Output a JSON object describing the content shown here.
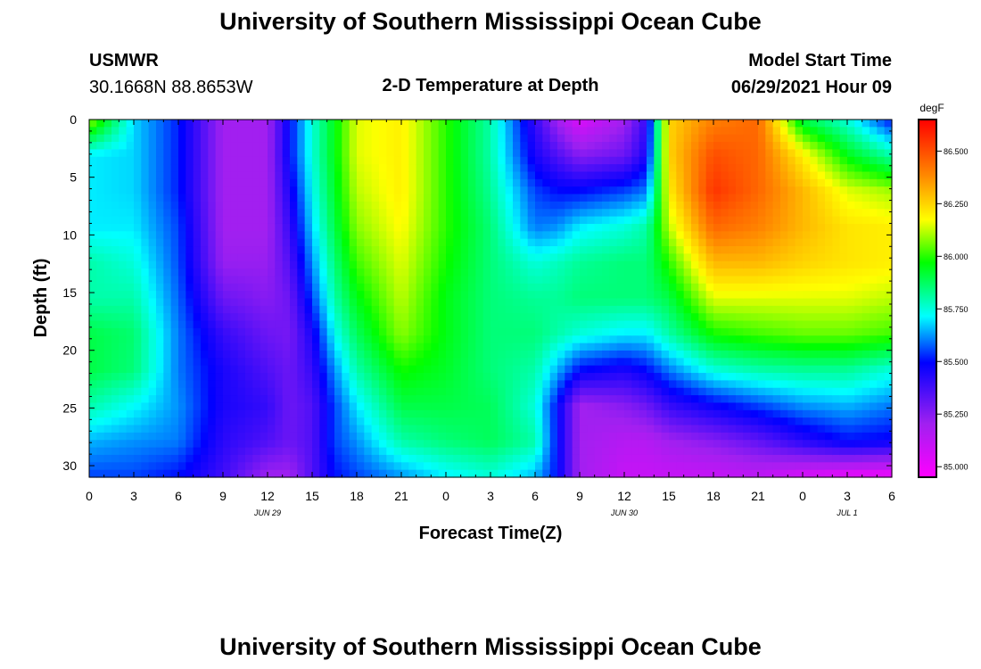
{
  "header": {
    "title": "University of Southern Mississippi Ocean Cube",
    "station": "USMWR",
    "coords": "30.1668N  88.8653W",
    "plot_title": "2-D Temperature at Depth",
    "model_label": "Model Start Time",
    "model_time": "06/29/2021 Hour 09"
  },
  "footer": {
    "title": "University of Southern Mississippi Ocean Cube"
  },
  "chart_data": {
    "type": "heatmap",
    "title": "2-D Temperature at Depth",
    "xlabel": "Forecast Time(Z)",
    "ylabel": "Depth (ft)",
    "x_range_hours": [
      0,
      54
    ],
    "y_range_ft": [
      0,
      31
    ],
    "y_inverted": true,
    "x_tick_labels": [
      "0",
      "3",
      "6",
      "9",
      "12",
      "15",
      "18",
      "21",
      "0",
      "3",
      "6",
      "9",
      "12",
      "15",
      "18",
      "21",
      "0",
      "3",
      "6"
    ],
    "y_ticks": [
      0,
      5,
      10,
      15,
      20,
      25,
      30
    ],
    "date_labels": [
      {
        "text": "JUN 29",
        "hour": 12
      },
      {
        "text": "JUN 30",
        "hour": 36
      },
      {
        "text": "JUL 1",
        "hour": 51
      }
    ],
    "colorbar": {
      "unit": "degF",
      "min": 84.95,
      "max": 86.65,
      "ticks": [
        "85.000",
        "85.250",
        "85.500",
        "85.750",
        "86.000",
        "86.250",
        "86.500"
      ]
    },
    "anchors": [
      {
        "t": 0,
        "col": [
          86.1,
          85.7,
          85.7,
          85.7,
          85.8,
          85.8,
          85.9,
          85.9,
          85.8,
          85.65,
          85.55
        ]
      },
      {
        "t": 3,
        "col": [
          85.68,
          85.68,
          85.68,
          85.7,
          85.75,
          85.8,
          85.86,
          85.85,
          85.72,
          85.62,
          85.55
        ]
      },
      {
        "t": 6,
        "col": [
          85.52,
          85.52,
          85.52,
          85.55,
          85.56,
          85.58,
          85.6,
          85.6,
          85.62,
          85.6,
          85.5
        ]
      },
      {
        "t": 9,
        "col": [
          85.2,
          85.2,
          85.2,
          85.2,
          85.22,
          85.3,
          85.4,
          85.45,
          85.45,
          85.42,
          85.38
        ]
      },
      {
        "t": 12,
        "col": [
          85.2,
          85.2,
          85.2,
          85.2,
          85.22,
          85.25,
          85.3,
          85.35,
          85.4,
          85.35,
          85.2
        ]
      },
      {
        "t": 13.5,
        "col": [
          85.5,
          85.5,
          85.45,
          85.4,
          85.35,
          85.3,
          85.28,
          85.3,
          85.3,
          85.3,
          85.2
        ]
      },
      {
        "t": 15,
        "col": [
          85.75,
          85.75,
          85.72,
          85.68,
          85.62,
          85.55,
          85.45,
          85.4,
          85.35,
          85.35,
          85.35
        ]
      },
      {
        "t": 16.5,
        "col": [
          85.95,
          85.95,
          85.93,
          85.9,
          85.85,
          85.8,
          85.72,
          85.62,
          85.55,
          85.55,
          85.5
        ]
      },
      {
        "t": 18,
        "col": [
          86.15,
          86.15,
          86.12,
          86.08,
          86.02,
          85.95,
          85.88,
          85.8,
          85.7,
          85.62,
          85.55
        ]
      },
      {
        "t": 21,
        "col": [
          86.2,
          86.2,
          86.2,
          86.18,
          86.15,
          86.12,
          86.08,
          85.98,
          85.9,
          85.8,
          85.62
        ]
      },
      {
        "t": 24,
        "col": [
          86.0,
          86.0,
          86.0,
          86.0,
          85.98,
          85.95,
          85.95,
          85.93,
          85.9,
          85.85,
          85.7
        ]
      },
      {
        "t": 27,
        "col": [
          85.8,
          85.8,
          85.82,
          85.85,
          85.85,
          85.85,
          85.85,
          85.85,
          85.88,
          85.88,
          85.75
        ]
      },
      {
        "t": 30,
        "col": [
          85.4,
          85.45,
          85.55,
          85.6,
          85.75,
          85.82,
          85.85,
          85.8,
          85.75,
          85.8,
          85.65
        ]
      },
      {
        "t": 31.5,
        "col": [
          85.2,
          85.35,
          85.5,
          85.62,
          85.78,
          85.82,
          85.8,
          85.65,
          85.5,
          85.5,
          85.5
        ]
      },
      {
        "t": 33,
        "col": [
          85.05,
          85.25,
          85.5,
          85.7,
          85.82,
          85.85,
          85.75,
          85.5,
          85.2,
          85.2,
          85.2
        ]
      },
      {
        "t": 36,
        "col": [
          85.2,
          85.3,
          85.55,
          85.75,
          85.85,
          85.85,
          85.7,
          85.45,
          85.25,
          85.15,
          85.1
        ]
      },
      {
        "t": 37.5,
        "col": [
          85.4,
          85.45,
          85.6,
          85.8,
          85.85,
          85.85,
          85.7,
          85.5,
          85.3,
          85.15,
          85.1
        ]
      },
      {
        "t": 39,
        "col": [
          86.25,
          86.25,
          86.2,
          86.12,
          86.0,
          85.9,
          85.8,
          85.6,
          85.4,
          85.2,
          85.1
        ]
      },
      {
        "t": 42,
        "col": [
          86.4,
          86.5,
          86.55,
          86.45,
          86.3,
          86.15,
          85.98,
          85.75,
          85.48,
          85.25,
          85.1
        ]
      },
      {
        "t": 45,
        "col": [
          86.45,
          86.45,
          86.45,
          86.4,
          86.3,
          86.15,
          86.02,
          85.8,
          85.55,
          85.32,
          85.12
        ]
      },
      {
        "t": 48,
        "col": [
          85.9,
          86.2,
          86.3,
          86.3,
          86.25,
          86.15,
          86.05,
          85.82,
          85.62,
          85.42,
          85.05
        ]
      },
      {
        "t": 51,
        "col": [
          85.75,
          85.95,
          86.15,
          86.22,
          86.22,
          86.15,
          86.05,
          85.82,
          85.65,
          85.5,
          85.0
        ]
      },
      {
        "t": 54,
        "col": [
          85.5,
          85.8,
          86.1,
          86.2,
          86.2,
          86.12,
          86.02,
          85.75,
          85.6,
          85.48,
          84.98
        ]
      }
    ]
  }
}
